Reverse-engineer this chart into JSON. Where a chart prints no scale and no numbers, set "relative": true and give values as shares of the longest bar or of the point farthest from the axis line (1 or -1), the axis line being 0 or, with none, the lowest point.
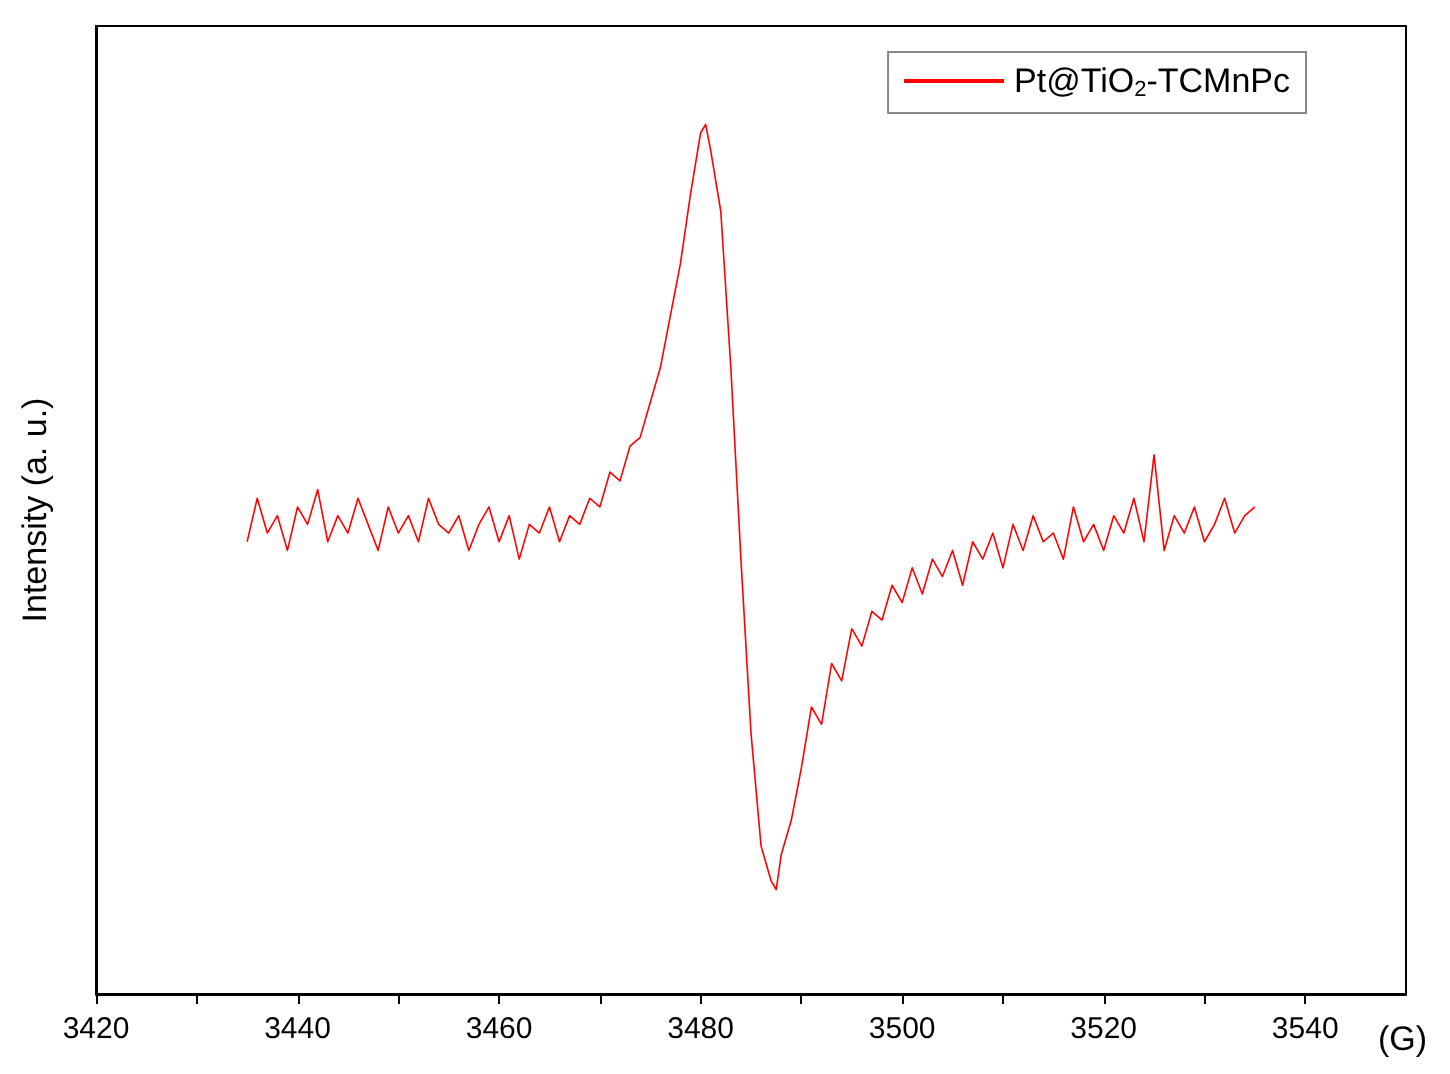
{
  "chart_data": {
    "type": "line",
    "relative": true,
    "xlabel": "(G)",
    "ylabel": "Intensity (a. u.)",
    "legend": "top right",
    "grid": false,
    "marker": "none",
    "line_style": "solid",
    "xlim": [
      3420,
      3550
    ],
    "xticks": [
      3420,
      {
        "value": 3430,
        "label": null
      },
      3440,
      {
        "value": 3450,
        "label": null
      },
      3460,
      {
        "value": 3470,
        "label": null
      },
      3480,
      {
        "value": 3490,
        "label": null
      },
      3500,
      {
        "value": 3510,
        "label": null
      },
      3520,
      {
        "value": 3530,
        "label": null
      },
      3540
    ],
    "series": [
      {
        "name": "Pt@TiO$_{2}$-TCMnPc",
        "color": "#ff0000",
        "x": [
          3435,
          3436,
          3437,
          3438,
          3439,
          3440,
          3441,
          3442,
          3443,
          3444,
          3445,
          3446,
          3447,
          3448,
          3449,
          3450,
          3451,
          3452,
          3453,
          3454,
          3455,
          3456,
          3457,
          3458,
          3459,
          3460,
          3461,
          3462,
          3463,
          3464,
          3465,
          3466,
          3467,
          3468,
          3469,
          3470,
          3471,
          3472,
          3473,
          3474,
          3475,
          3476,
          3477,
          3478,
          3479,
          3480,
          3480.5,
          3481,
          3482,
          3483,
          3484,
          3485,
          3486,
          3487,
          3487.5,
          3488,
          3489,
          3490,
          3491,
          3492,
          3493,
          3494,
          3495,
          3496,
          3497,
          3498,
          3499,
          3500,
          3501,
          3502,
          3503,
          3504,
          3505,
          3506,
          3507,
          3508,
          3509,
          3510,
          3511,
          3512,
          3513,
          3514,
          3515,
          3516,
          3517,
          3518,
          3519,
          3520,
          3521,
          3522,
          3523,
          3524,
          3525,
          3526,
          3527,
          3528,
          3529,
          3530,
          3531,
          3532,
          3533,
          3534,
          3535
        ],
        "values": [
          0.52,
          0.57,
          0.53,
          0.55,
          0.51,
          0.56,
          0.54,
          0.58,
          0.52,
          0.55,
          0.53,
          0.57,
          0.54,
          0.51,
          0.56,
          0.53,
          0.55,
          0.52,
          0.57,
          0.54,
          0.53,
          0.55,
          0.51,
          0.54,
          0.56,
          0.52,
          0.55,
          0.5,
          0.54,
          0.53,
          0.56,
          0.52,
          0.55,
          0.54,
          0.57,
          0.56,
          0.6,
          0.59,
          0.63,
          0.64,
          0.68,
          0.72,
          0.78,
          0.84,
          0.92,
          0.99,
          1.0,
          0.97,
          0.9,
          0.72,
          0.5,
          0.3,
          0.17,
          0.13,
          0.12,
          0.16,
          0.2,
          0.26,
          0.33,
          0.31,
          0.38,
          0.36,
          0.42,
          0.4,
          0.44,
          0.43,
          0.47,
          0.45,
          0.49,
          0.46,
          0.5,
          0.48,
          0.51,
          0.47,
          0.52,
          0.5,
          0.53,
          0.49,
          0.54,
          0.51,
          0.55,
          0.52,
          0.53,
          0.5,
          0.56,
          0.52,
          0.54,
          0.51,
          0.55,
          0.53,
          0.57,
          0.52,
          0.62,
          0.51,
          0.55,
          0.53,
          0.56,
          0.52,
          0.54,
          0.57,
          0.53,
          0.55,
          0.56
        ]
      }
    ]
  }
}
